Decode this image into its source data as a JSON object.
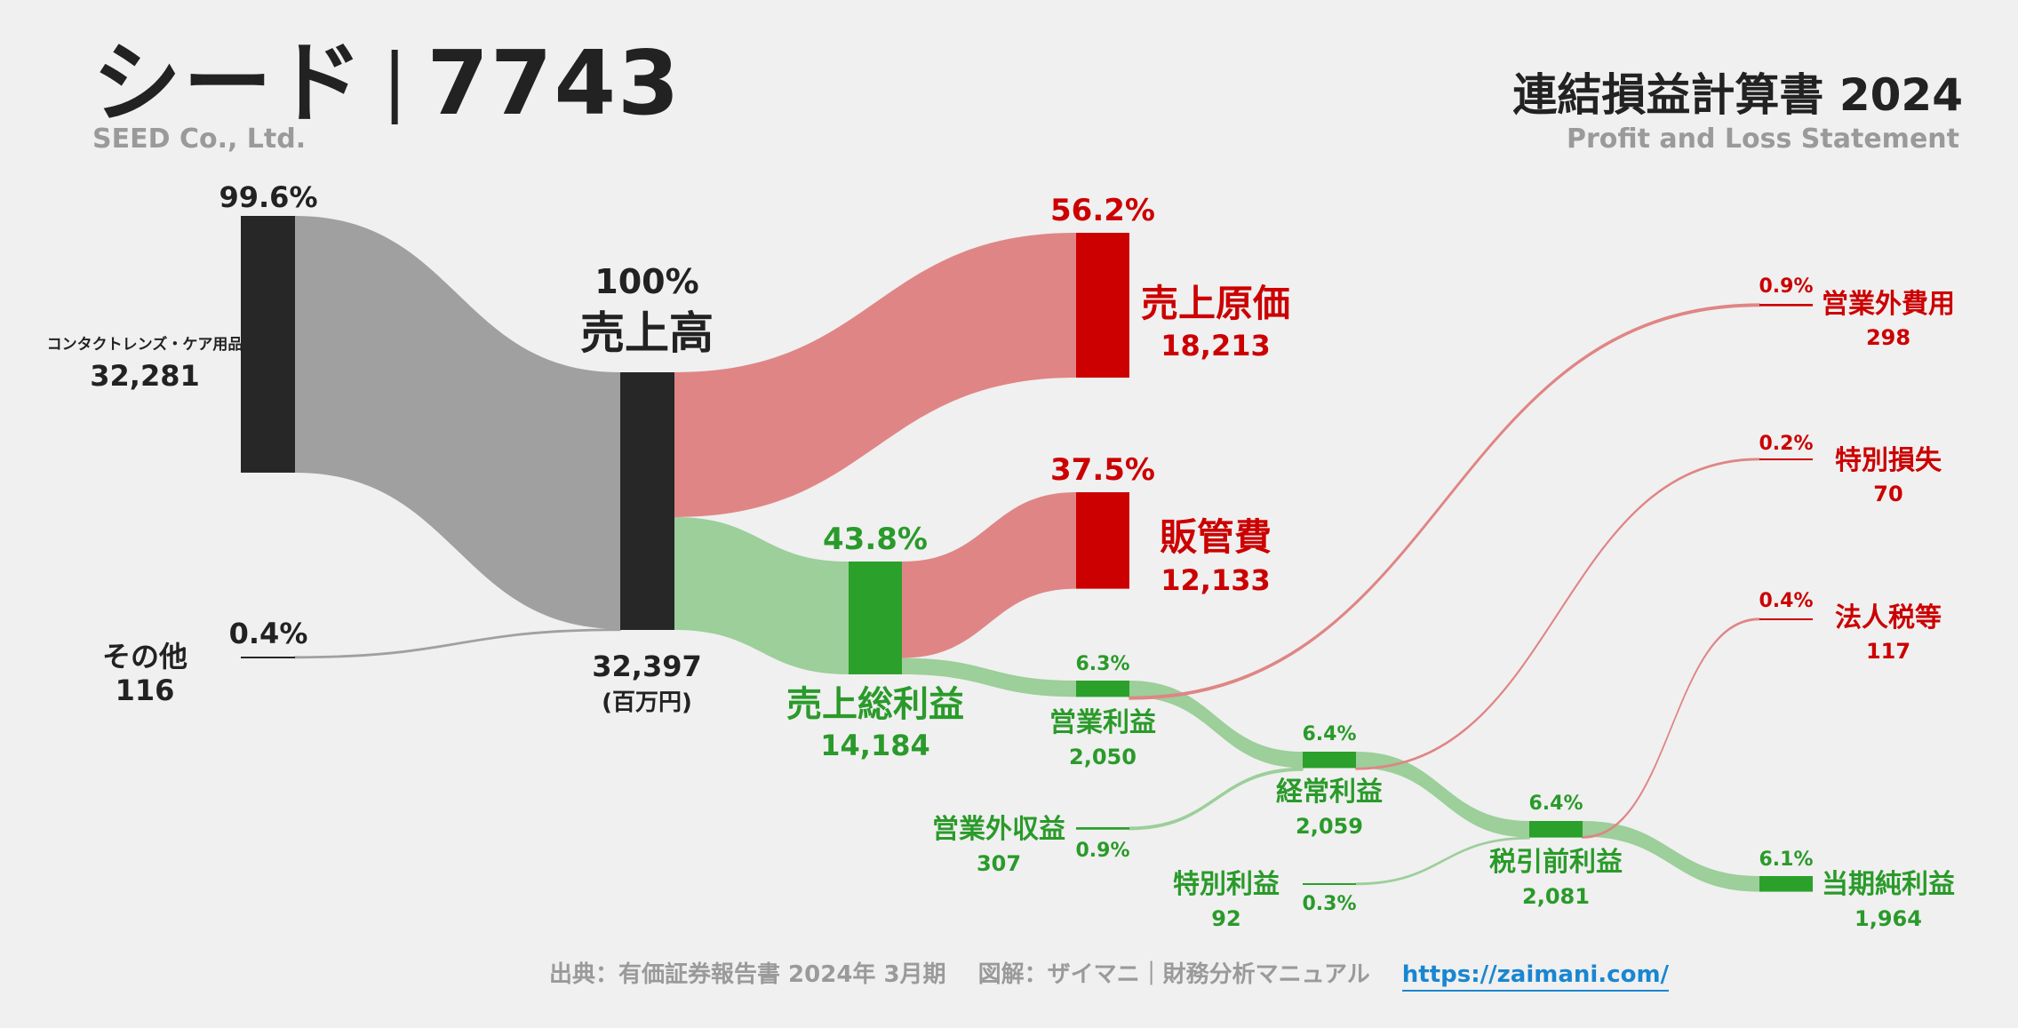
{
  "header": {
    "company_name": "シード",
    "ticker": "7743",
    "company_en": "SEED Co., Ltd.",
    "statement_title": "連結損益計算書 2024",
    "statement_en": "Profit and Loss Statement"
  },
  "footer": {
    "source": "出典：有価証券報告書 2024年 3月期",
    "credit": "図解：ザイマニ｜財務分析マニュアル",
    "url": "https://zaimani.com/"
  },
  "colors": {
    "dark": "#272727",
    "gray_flow": "#a0a0a0",
    "red": "#cc0000",
    "red_flow": "#e08585",
    "green": "#2ba02b",
    "green_flow": "#9ccf9a",
    "green_text": "#2a9a2a"
  },
  "chart_data": {
    "type": "sankey",
    "unit": "(百万円)",
    "nodes": [
      {
        "id": "contact",
        "label": "コンタクトレンズ・ケア用品",
        "value": 32281,
        "value_label": "32,281",
        "pct": "99.6%"
      },
      {
        "id": "other",
        "label": "その他",
        "value": 116,
        "value_label": "116",
        "pct": "0.4%"
      },
      {
        "id": "revenue",
        "label": "売上高",
        "value": 32397,
        "value_label": "32,397",
        "pct": "100%"
      },
      {
        "id": "cogs",
        "label": "売上原価",
        "value": 18213,
        "value_label": "18,213",
        "pct": "56.2%"
      },
      {
        "id": "gross",
        "label": "売上総利益",
        "value": 14184,
        "value_label": "14,184",
        "pct": "43.8%"
      },
      {
        "id": "sga",
        "label": "販管費",
        "value": 12133,
        "value_label": "12,133",
        "pct": "37.5%"
      },
      {
        "id": "op",
        "label": "営業利益",
        "value": 2050,
        "value_label": "2,050",
        "pct": "6.3%"
      },
      {
        "id": "nonop_inc",
        "label": "営業外収益",
        "value": 307,
        "value_label": "307",
        "pct": "0.9%"
      },
      {
        "id": "nonop_exp",
        "label": "営業外費用",
        "value": 298,
        "value_label": "298",
        "pct": "0.9%"
      },
      {
        "id": "ordinary",
        "label": "経常利益",
        "value": 2059,
        "value_label": "2,059",
        "pct": "6.4%"
      },
      {
        "id": "sp_gain",
        "label": "特別利益",
        "value": 92,
        "value_label": "92",
        "pct": "0.3%"
      },
      {
        "id": "sp_loss",
        "label": "特別損失",
        "value": 70,
        "value_label": "70",
        "pct": "0.2%"
      },
      {
        "id": "pretax",
        "label": "税引前利益",
        "value": 2081,
        "value_label": "2,081",
        "pct": "6.4%"
      },
      {
        "id": "tax",
        "label": "法人税等",
        "value": 117,
        "value_label": "117",
        "pct": "0.4%"
      },
      {
        "id": "net",
        "label": "当期純利益",
        "value": 1964,
        "value_label": "1,964",
        "pct": "6.1%"
      }
    ],
    "links": [
      {
        "source": "contact",
        "target": "revenue",
        "value": 32281
      },
      {
        "source": "other",
        "target": "revenue",
        "value": 116
      },
      {
        "source": "revenue",
        "target": "cogs",
        "value": 18213
      },
      {
        "source": "revenue",
        "target": "gross",
        "value": 14184
      },
      {
        "source": "gross",
        "target": "sga",
        "value": 12133
      },
      {
        "source": "gross",
        "target": "op",
        "value": 2050
      },
      {
        "source": "op",
        "target": "ordinary",
        "value": 2050
      },
      {
        "source": "op",
        "target": "nonop_exp",
        "value": 298
      },
      {
        "source": "nonop_inc",
        "target": "ordinary",
        "value": 307
      },
      {
        "source": "ordinary",
        "target": "pretax",
        "value": 2059
      },
      {
        "source": "ordinary",
        "target": "sp_loss",
        "value": 70
      },
      {
        "source": "sp_gain",
        "target": "pretax",
        "value": 92
      },
      {
        "source": "pretax",
        "target": "net",
        "value": 1964
      },
      {
        "source": "pretax",
        "target": "tax",
        "value": 117
      }
    ]
  }
}
